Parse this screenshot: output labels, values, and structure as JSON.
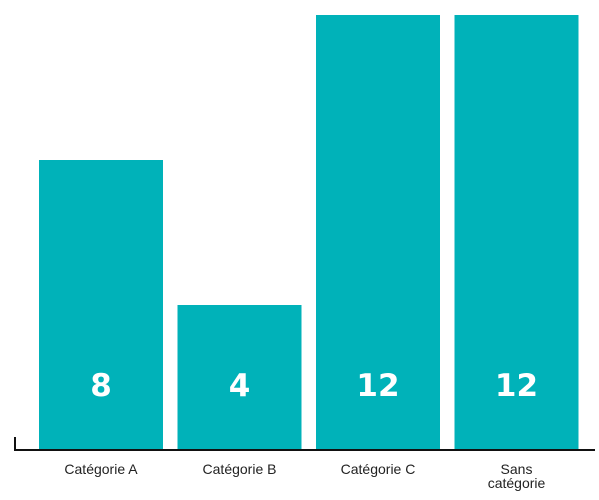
{
  "chart_data": {
    "type": "bar",
    "categories": [
      "Catégorie A",
      "Catégorie B",
      "Catégorie C",
      "Sans catégorie"
    ],
    "category_label_lines": [
      [
        "Catégorie A"
      ],
      [
        "Catégorie B"
      ],
      [
        "Catégorie C"
      ],
      [
        "Sans",
        "catégorie"
      ]
    ],
    "values": [
      8,
      4,
      12,
      12
    ],
    "title": "",
    "xlabel": "",
    "ylabel": "",
    "ylim": [
      0,
      12
    ],
    "grid": false,
    "data_labels": true,
    "colors": {
      "bar": "#00B2B9",
      "label": "#FFFFFF",
      "axis": "#111111"
    }
  }
}
